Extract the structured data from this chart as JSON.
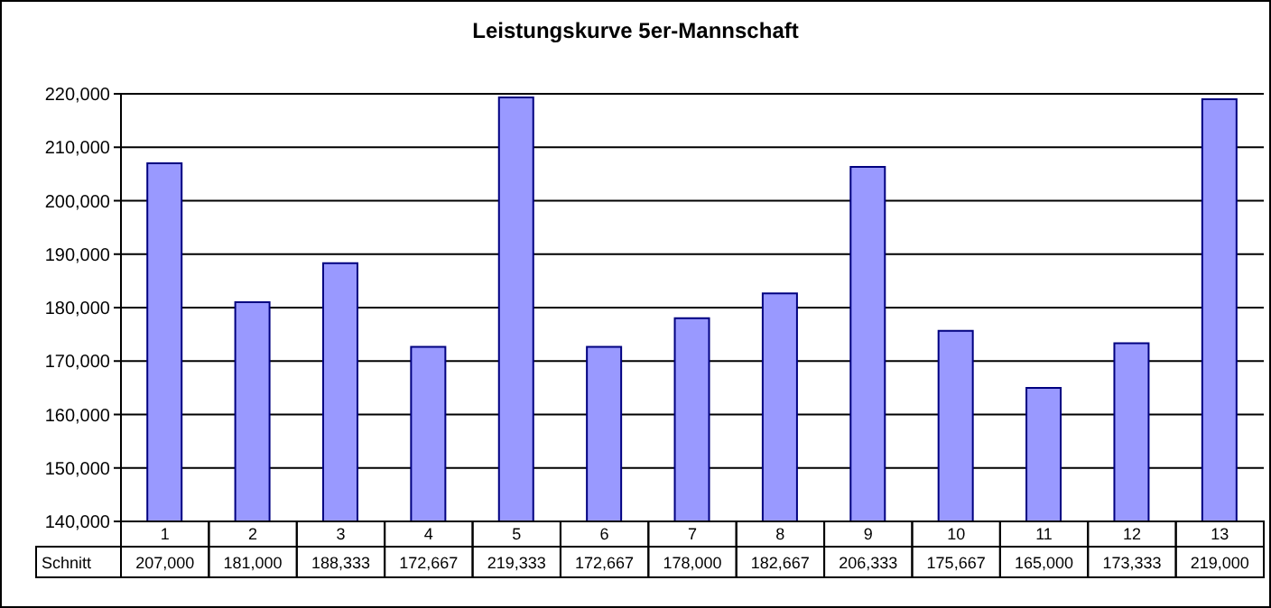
{
  "chart_data": {
    "type": "bar",
    "title": "Leistungskurve 5er-Mannschaft",
    "categories": [
      "1",
      "2",
      "3",
      "4",
      "5",
      "6",
      "7",
      "8",
      "9",
      "10",
      "11",
      "12",
      "13"
    ],
    "series": [
      {
        "name": "Schnitt",
        "color": "#9999ff",
        "values": [
          207000,
          181000,
          188333,
          172667,
          219333,
          172667,
          178000,
          182667,
          206333,
          175667,
          165000,
          173333,
          219000
        ],
        "value_labels": [
          "207,000",
          "181,000",
          "188,333",
          "172,667",
          "219,333",
          "172,667",
          "178,000",
          "182,667",
          "206,333",
          "175,667",
          "165,000",
          "173,333",
          "219,000"
        ]
      }
    ],
    "ylim": [
      140000,
      220000
    ],
    "yticks": [
      {
        "value": 140000,
        "label": "140,000"
      },
      {
        "value": 150000,
        "label": "150,000"
      },
      {
        "value": 160000,
        "label": "160,000"
      },
      {
        "value": 170000,
        "label": "170,000"
      },
      {
        "value": 180000,
        "label": "180,000"
      },
      {
        "value": 190000,
        "label": "190,000"
      },
      {
        "value": 200000,
        "label": "200,000"
      },
      {
        "value": 210000,
        "label": "210,000"
      },
      {
        "value": 220000,
        "label": "220,000"
      }
    ],
    "grid": "y"
  }
}
